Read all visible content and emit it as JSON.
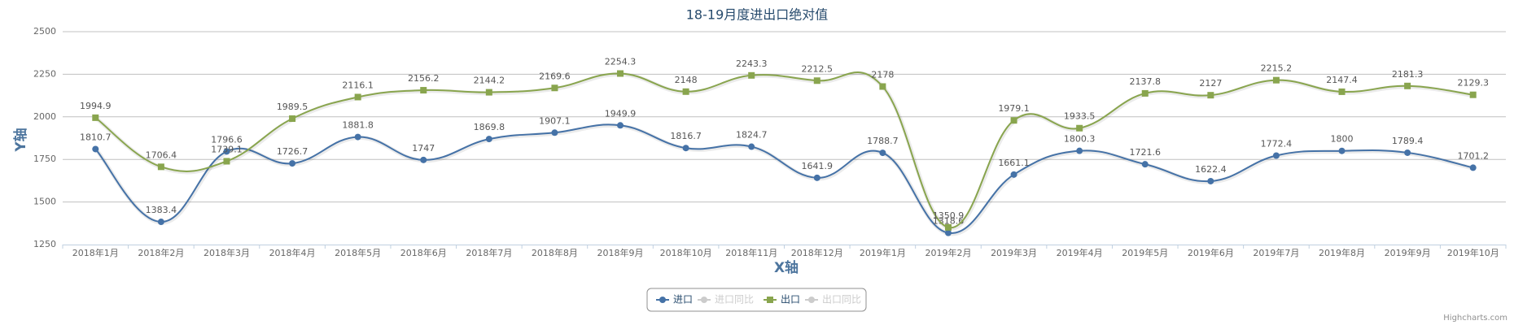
{
  "chart_data": {
    "type": "spline",
    "title": "18-19月度进出口绝对值",
    "x_axis_label": "X轴",
    "y_axis_label": "Y轴",
    "credit": "Highcharts.com",
    "categories": [
      "2018年1月",
      "2018年2月",
      "2018年3月",
      "2018年4月",
      "2018年5月",
      "2018年6月",
      "2018年7月",
      "2018年8月",
      "2018年9月",
      "2018年10月",
      "2018年11月",
      "2018年12月",
      "2019年1月",
      "2019年2月",
      "2019年3月",
      "2019年4月",
      "2019年5月",
      "2019年6月",
      "2019年7月",
      "2019年8月",
      "2019年9月",
      "2019年10月"
    ],
    "series": [
      {
        "name": "进口",
        "color": "#4572A7",
        "marker": "circle",
        "values": [
          1810.7,
          1383.4,
          1796.6,
          1726.7,
          1881.8,
          1747,
          1869.8,
          1907.1,
          1949.9,
          1816.7,
          1824.7,
          1641.9,
          1788.7,
          1318.6,
          1661.1,
          1800.3,
          1721.6,
          1622.4,
          1772.4,
          1800,
          1789.4,
          1701.2
        ]
      },
      {
        "name": "进口同比",
        "color": "#cccccc",
        "visible": false
      },
      {
        "name": "出口",
        "color": "#89A54E",
        "marker": "square",
        "values": [
          1994.9,
          1706.4,
          1739.1,
          1989.5,
          2116.1,
          2156.2,
          2144.2,
          2169.6,
          2254.3,
          2148,
          2243.3,
          2212.5,
          2178,
          1350.9,
          1979.1,
          1933.5,
          2137.8,
          2127,
          2215.2,
          2147.4,
          2181.3,
          2129.3
        ]
      },
      {
        "name": "出口同比",
        "color": "#cccccc",
        "visible": false
      }
    ],
    "ylim": [
      1250,
      2500
    ],
    "yticks": [
      1250,
      1500,
      1750,
      2000,
      2250,
      2500
    ],
    "grid": true,
    "legend": "bottom"
  }
}
